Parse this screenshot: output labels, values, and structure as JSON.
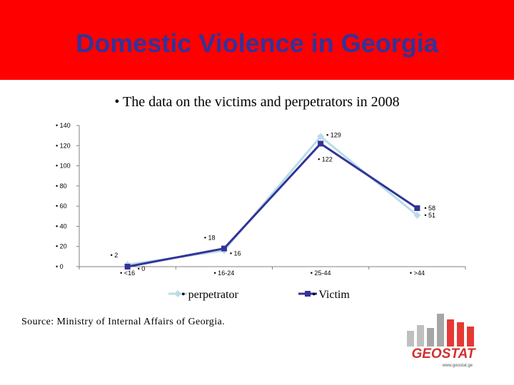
{
  "slide": {
    "title": "Domestic Violence in Georgia",
    "subtitle": "• The data on the victims and perpetrators in 2008",
    "source": "Source: Ministry of Internal Affairs of Georgia."
  },
  "colors": {
    "header_bg": "#ff0000",
    "title_text": "#333399",
    "perpetrator": "#b7dde8",
    "victim": "#333399",
    "logo_bars": [
      "#bfbfbf",
      "#bfbfbf",
      "#a6a6a6",
      "#a6a6a6",
      "#e53935",
      "#e53935",
      "#e53935"
    ]
  },
  "logo": {
    "text": "GEOSTAT",
    "url": "www.geostat.ge"
  },
  "chart_data": {
    "type": "line",
    "categories": [
      "<16",
      "16-24",
      "25-44",
      ">44"
    ],
    "tick_prefix": "• ",
    "ylim": [
      0,
      140
    ],
    "yticks": [
      0,
      20,
      40,
      60,
      80,
      100,
      120,
      140
    ],
    "grid": false,
    "legend": "bottom",
    "series": [
      {
        "name": "perpetrator",
        "values": [
          2,
          16,
          129,
          51
        ],
        "marker": "diamond"
      },
      {
        "name": "Victim",
        "values": [
          0,
          18,
          122,
          58
        ],
        "marker": "square"
      }
    ]
  }
}
